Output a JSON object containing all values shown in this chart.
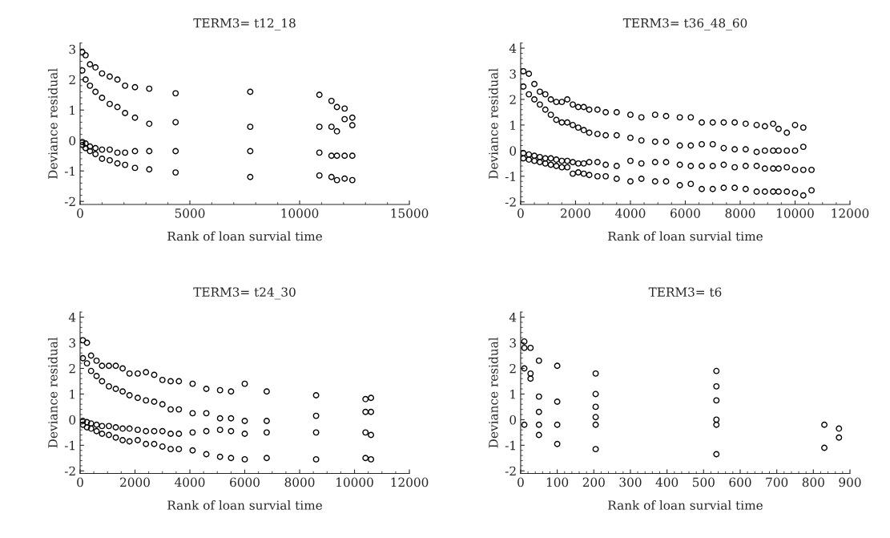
{
  "chart_data": [
    {
      "type": "scatter",
      "title": "TERM3= t12_18",
      "xlabel": "Rank of loan survial time",
      "ylabel": "Deviance residual",
      "marker": "circle",
      "xlim": [
        0,
        15000
      ],
      "xticks": [
        0,
        5000,
        10000,
        15000
      ],
      "ylim": [
        -2.1,
        3.2
      ],
      "yticks": [
        -2,
        -1,
        0,
        1,
        2,
        3
      ],
      "x": [
        100,
        250,
        450,
        700,
        1000,
        1350,
        1700,
        2050,
        2500,
        3150,
        4350,
        7750,
        10900,
        11450,
        11700,
        12050,
        12400
      ],
      "series": [
        {
          "color": "#000000",
          "values": [
            2.9,
            2.8,
            2.5,
            2.4,
            2.2,
            2.1,
            2.0,
            1.8,
            1.75,
            1.7,
            1.55,
            1.6,
            1.5,
            1.3,
            1.1,
            1.05,
            0.75
          ]
        },
        {
          "color": "#000000",
          "values": [
            2.3,
            2.0,
            1.8,
            1.6,
            1.4,
            1.2,
            1.1,
            0.9,
            0.75,
            0.55,
            0.6,
            0.45,
            0.45,
            0.45,
            0.3,
            0.7,
            0.5
          ]
        },
        {
          "color": "#000000",
          "values": [
            -0.05,
            -0.1,
            -0.2,
            -0.25,
            -0.3,
            -0.3,
            -0.4,
            -0.4,
            -0.35,
            -0.35,
            -0.35,
            -0.35,
            -0.4,
            -0.5,
            -0.5,
            -0.5,
            -0.5
          ]
        },
        {
          "color": "#000000",
          "values": [
            -0.15,
            -0.25,
            -0.35,
            -0.45,
            -0.6,
            -0.65,
            -0.75,
            -0.8,
            -0.9,
            -0.95,
            -1.05,
            -1.2,
            -1.15,
            -1.2,
            -1.3,
            -1.25,
            -1.3
          ]
        }
      ]
    },
    {
      "type": "scatter",
      "title": "TERM3= t36_48_60",
      "xlabel": "Rank of loan survial time",
      "ylabel": "Deviance residual",
      "marker": "circle",
      "xlim": [
        0,
        12000
      ],
      "xticks": [
        0,
        2000,
        4000,
        6000,
        8000,
        10000,
        12000
      ],
      "ylim": [
        -2.1,
        4.2
      ],
      "yticks": [
        -2,
        -1,
        0,
        1,
        2,
        3,
        4
      ],
      "x": [
        100,
        300,
        500,
        700,
        900,
        1100,
        1300,
        1500,
        1700,
        1900,
        2100,
        2300,
        2500,
        2800,
        3100,
        3500,
        4000,
        4400,
        4900,
        5300,
        5800,
        6200,
        6600,
        7000,
        7400,
        7800,
        8200,
        8600,
        8900,
        9200,
        9400,
        9700,
        10000,
        10300,
        10600
      ],
      "series": [
        {
          "color": "#000000",
          "values": [
            3.1,
            3.0,
            2.6,
            2.3,
            2.2,
            2.0,
            1.9,
            1.9,
            2.0,
            1.8,
            1.7,
            1.7,
            1.6,
            1.6,
            1.5,
            1.5,
            1.4,
            1.3,
            1.4,
            1.35,
            1.3,
            1.3,
            1.1,
            1.1,
            1.1,
            1.1,
            1.05,
            1.0,
            0.95,
            1.05,
            0.85,
            0.7,
            1.0,
            0.9,
            null
          ]
        },
        {
          "color": "#000000",
          "values": [
            2.5,
            2.2,
            2.0,
            1.8,
            1.6,
            1.4,
            1.2,
            1.1,
            1.1,
            1.0,
            0.9,
            0.8,
            0.7,
            0.65,
            0.6,
            0.6,
            0.5,
            0.4,
            0.35,
            0.35,
            0.2,
            0.2,
            0.25,
            0.25,
            0.1,
            0.05,
            0.05,
            -0.05,
            0.0,
            0.0,
            0.0,
            0.0,
            0.0,
            0.15,
            null
          ]
        },
        {
          "color": "#000000",
          "values": [
            -0.1,
            -0.15,
            -0.2,
            -0.25,
            -0.3,
            -0.3,
            -0.35,
            -0.4,
            -0.4,
            -0.45,
            -0.5,
            -0.5,
            -0.45,
            -0.45,
            -0.55,
            -0.6,
            -0.4,
            -0.5,
            -0.45,
            -0.45,
            -0.55,
            -0.6,
            -0.6,
            -0.6,
            -0.55,
            -0.65,
            -0.6,
            -0.6,
            -0.7,
            -0.7,
            -0.7,
            -0.65,
            -0.75,
            -0.75,
            -0.75
          ]
        },
        {
          "color": "#000000",
          "values": [
            -0.3,
            -0.35,
            -0.4,
            -0.45,
            -0.5,
            -0.55,
            -0.6,
            -0.65,
            -0.65,
            -0.9,
            -0.85,
            -0.9,
            -0.95,
            -1.0,
            -1.0,
            -1.1,
            -1.2,
            -1.1,
            -1.2,
            -1.2,
            -1.35,
            -1.3,
            -1.5,
            -1.5,
            -1.45,
            -1.45,
            -1.5,
            -1.6,
            -1.6,
            -1.6,
            -1.6,
            -1.6,
            -1.65,
            -1.75,
            -1.55
          ]
        }
      ]
    },
    {
      "type": "scatter",
      "title": "TERM3= t24_30",
      "xlabel": "Rank of loan survial time",
      "ylabel": "Deviance residual",
      "marker": "circle",
      "xlim": [
        0,
        12000
      ],
      "xticks": [
        0,
        2000,
        4000,
        6000,
        8000,
        10000,
        12000
      ],
      "ylim": [
        -2.1,
        4.2
      ],
      "yticks": [
        -2,
        -1,
        0,
        1,
        2,
        3,
        4
      ],
      "x": [
        100,
        250,
        400,
        600,
        800,
        1050,
        1300,
        1550,
        1800,
        2100,
        2400,
        2700,
        3000,
        3300,
        3600,
        4100,
        4600,
        5100,
        5500,
        6000,
        6800,
        8600,
        10400,
        10600
      ],
      "series": [
        {
          "color": "#000000",
          "values": [
            3.1,
            3.0,
            2.5,
            2.3,
            2.1,
            2.1,
            2.1,
            2.0,
            1.8,
            1.8,
            1.85,
            1.75,
            1.55,
            1.5,
            1.5,
            1.4,
            1.2,
            1.15,
            1.1,
            1.4,
            1.1,
            0.95,
            0.8,
            0.85
          ]
        },
        {
          "color": "#000000",
          "values": [
            2.4,
            2.2,
            1.9,
            1.7,
            1.5,
            1.3,
            1.2,
            1.1,
            0.95,
            0.85,
            0.75,
            0.7,
            0.6,
            0.4,
            0.4,
            0.25,
            0.25,
            0.05,
            0.05,
            -0.05,
            -0.05,
            0.15,
            0.3,
            0.3
          ]
        },
        {
          "color": "#000000",
          "values": [
            -0.05,
            -0.1,
            -0.15,
            -0.2,
            -0.25,
            -0.25,
            -0.3,
            -0.35,
            -0.35,
            -0.4,
            -0.45,
            -0.45,
            -0.45,
            -0.55,
            -0.55,
            -0.5,
            -0.45,
            -0.4,
            -0.45,
            -0.55,
            -0.5,
            -0.5,
            -0.5,
            -0.6
          ]
        },
        {
          "color": "#000000",
          "values": [
            -0.2,
            -0.3,
            -0.35,
            -0.45,
            -0.55,
            -0.6,
            -0.7,
            -0.8,
            -0.85,
            -0.8,
            -0.95,
            -0.95,
            -1.05,
            -1.15,
            -1.15,
            -1.2,
            -1.35,
            -1.45,
            -1.5,
            -1.55,
            -1.5,
            -1.55,
            -1.5,
            -1.55
          ]
        }
      ]
    },
    {
      "type": "scatter",
      "title": "TERM3= t6",
      "xlabel": "Rank of loan survial time",
      "ylabel": "Deviance residual",
      "marker": "circle",
      "xlim": [
        0,
        900
      ],
      "xticks": [
        0,
        100,
        200,
        300,
        400,
        500,
        600,
        700,
        800,
        900
      ],
      "ylim": [
        -2.1,
        4.2
      ],
      "yticks": [
        -2,
        -1,
        0,
        1,
        2,
        3,
        4
      ],
      "series": [
        {
          "color": "#000000",
          "x": [
            10,
            10,
            10,
            10,
            27,
            27,
            27,
            50,
            50,
            50,
            50,
            50,
            100,
            100,
            100,
            100,
            205,
            205,
            205,
            205,
            205,
            205,
            535,
            535,
            535,
            535,
            535,
            535,
            830,
            830,
            870,
            870
          ],
          "values": [
            3.05,
            2.8,
            2.0,
            -0.2,
            2.8,
            1.8,
            1.6,
            2.3,
            0.9,
            0.3,
            -0.2,
            -0.6,
            2.1,
            0.7,
            -0.2,
            -0.95,
            1.8,
            1.0,
            0.5,
            0.1,
            -0.2,
            -1.15,
            1.9,
            1.3,
            0.75,
            0.0,
            -0.2,
            -1.35,
            -0.2,
            -1.1,
            -0.35,
            -0.7
          ]
        }
      ]
    }
  ]
}
